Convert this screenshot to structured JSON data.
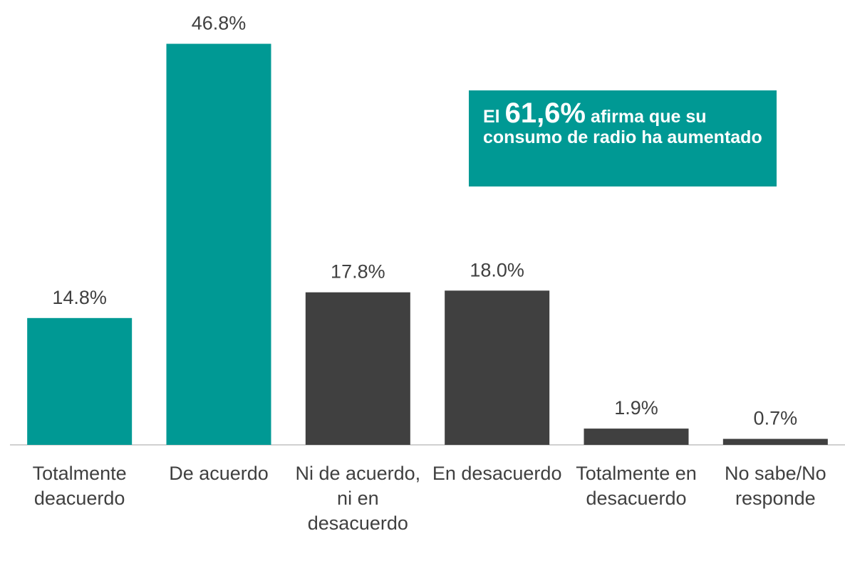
{
  "chart_data": {
    "type": "bar",
    "categories": [
      "Totalmente deacuerdo",
      "De acuerdo",
      "Ni de acuerdo, ni en desacuerdo",
      "En desacuerdo",
      "Totalmente en desacuerdo",
      "No sabe/No responde"
    ],
    "values": [
      14.8,
      46.8,
      17.8,
      18.0,
      1.9,
      0.7
    ],
    "value_labels": [
      "14.8%",
      "46.8%",
      "17.8%",
      "18.0%",
      "1.9%",
      "0.7%"
    ],
    "colors": [
      "#009994",
      "#009994",
      "#404040",
      "#404040",
      "#404040",
      "#404040"
    ],
    "ylim": [
      0,
      50
    ],
    "annotation": {
      "prefix": "El",
      "highlight": "61,6%",
      "suffix": "afirma que su consumo de radio ha aumentado",
      "color": "#009994"
    }
  }
}
